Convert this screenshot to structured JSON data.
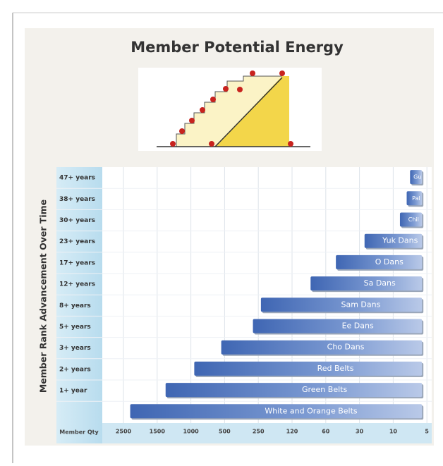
{
  "chart_data": {
    "type": "bar",
    "orientation": "horizontal",
    "title": "Member Potential Energy",
    "y_label": "Member Rank Advancement Over Time",
    "x_label": "Member Qty",
    "categories": [
      "47+ years",
      "38+ years",
      "30+ years",
      "23+ years",
      "17+ years",
      "12+ years",
      "8+ years",
      "5+ years",
      "3+ years",
      "2+ years",
      "1+ year",
      null
    ],
    "bar_labels": [
      "Gu",
      "Pal",
      "Chil",
      "Yuk Dans",
      "O Dans",
      "Sa Dans",
      "Sam Dans",
      "Ee Dans",
      "Cho Dans",
      "Red Belts",
      "Green Belts",
      "White and Orange Belts"
    ],
    "values": [
      7.5,
      8,
      9,
      27,
      51,
      87,
      240,
      290,
      550,
      950,
      1375,
      2300
    ],
    "color": "#4f78c4",
    "xlim": [
      2500,
      5
    ],
    "xticks": [
      2500,
      1500,
      1000,
      500,
      250,
      120,
      60,
      30,
      10,
      5
    ],
    "grid": true
  }
}
